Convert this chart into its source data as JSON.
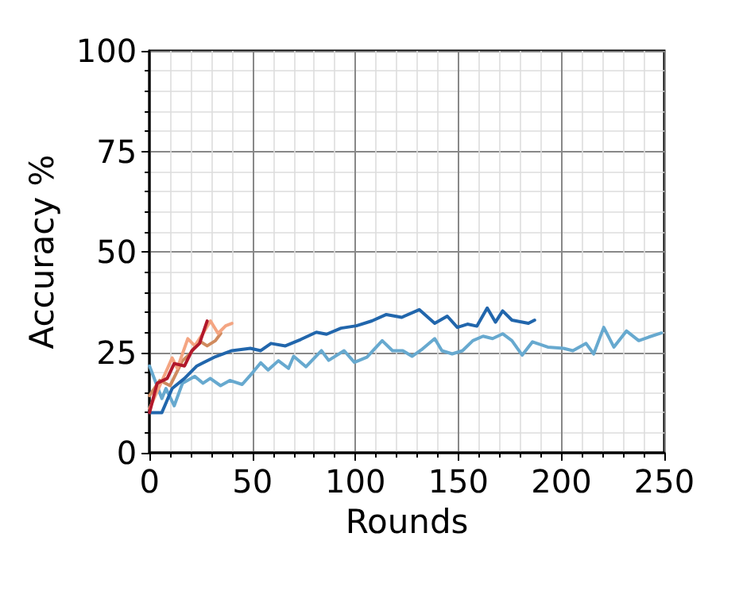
{
  "chart_data": {
    "type": "line",
    "xlabel": "Rounds",
    "ylabel": "Accuracy %",
    "xlim": [
      0,
      250
    ],
    "xticks": [
      0,
      50,
      100,
      150,
      200,
      250
    ],
    "ylim": [
      0,
      100
    ],
    "yticks": [
      0,
      25,
      50,
      75,
      100
    ],
    "grid": true,
    "marker": "none",
    "line_style": "solid",
    "series": [
      {
        "color": "#67a9cf",
        "x": [
          0,
          6,
          8,
          12,
          16,
          22,
          26,
          29.5,
          34.5,
          39,
          45,
          50,
          54,
          57.6,
          62.6,
          67.5,
          70,
          76,
          83.5,
          87,
          94.5,
          99.5,
          105.6,
          113,
          118,
          123,
          127.5,
          132,
          138.5,
          142,
          147,
          152,
          157,
          162,
          166.6,
          171.5,
          176,
          181,
          186,
          193.4,
          201,
          205.6,
          212,
          215.7,
          220.6,
          225.5,
          231.6,
          237.6,
          242.5,
          248.6
        ],
        "values": [
          21.6,
          13.5,
          16,
          11.7,
          17.3,
          19,
          17.3,
          18.5,
          16.7,
          18,
          17,
          19.9,
          22.4,
          20.6,
          22.9,
          21,
          24,
          21.4,
          25.4,
          23,
          25.4,
          22.5,
          23.8,
          27.9,
          25.4,
          25.4,
          24,
          25.6,
          28.4,
          25.4,
          24.6,
          25.4,
          27.9,
          29,
          28.4,
          29.6,
          27.9,
          24.3,
          27.6,
          26.3,
          26,
          25.4,
          27.2,
          24.6,
          31.2,
          26.3,
          30.3,
          27.9,
          28.8,
          29.8
        ]
      },
      {
        "color": "#2166ac",
        "x": [
          0,
          6,
          11,
          17,
          23,
          32,
          40,
          49,
          54,
          59,
          66,
          73.5,
          81,
          86,
          93,
          100.5,
          108,
          115,
          122.5,
          131,
          138.5,
          144.6,
          149.5,
          154.4,
          159,
          164,
          168,
          171.5,
          176,
          184,
          187
        ],
        "values": [
          10,
          10,
          16,
          18.5,
          21.6,
          23.9,
          25.4,
          26,
          25.4,
          27.2,
          26.6,
          28.2,
          30,
          29.5,
          31,
          31.6,
          32.8,
          34.4,
          33.7,
          35.6,
          32.2,
          34,
          31.2,
          32,
          31.5,
          36,
          32.5,
          35.3,
          33,
          32.2,
          33
        ]
      },
      {
        "color": "#d08a5e",
        "x": [
          0,
          5,
          10,
          16,
          20,
          24,
          28,
          32,
          34.6
        ],
        "values": [
          14.2,
          18,
          16.7,
          22.9,
          24.8,
          27.9,
          26.6,
          27.9,
          29.7
        ]
      },
      {
        "color": "#f4a582",
        "x": [
          0,
          5,
          11,
          13.5,
          18.6,
          22,
          26,
          29.6,
          33.3,
          37,
          40
        ],
        "values": [
          11,
          16.7,
          23.6,
          21,
          28.4,
          26.6,
          29.7,
          32.8,
          29.7,
          31.6,
          32.2
        ]
      },
      {
        "color": "#b2182b",
        "x": [
          0,
          3.7,
          8.6,
          12,
          17,
          20.6,
          24.3,
          28
        ],
        "values": [
          10,
          17.3,
          18.5,
          22.2,
          21.6,
          25.4,
          27.2,
          32.8
        ]
      }
    ]
  }
}
